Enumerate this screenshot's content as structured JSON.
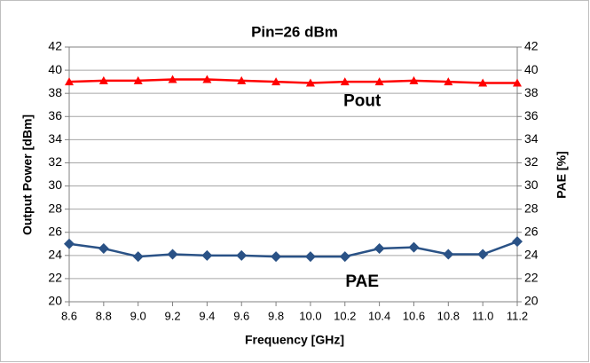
{
  "chart_data": {
    "type": "line",
    "title": "Pin=26 dBm",
    "x_label": "Frequency [GHz]",
    "y_label": "Output Power [dBm]",
    "y2_label": "PAE [%]",
    "x": [
      8.6,
      8.8,
      9.0,
      9.2,
      9.4,
      9.6,
      9.8,
      10.0,
      10.2,
      10.4,
      10.6,
      10.8,
      11.0,
      11.2
    ],
    "xlim": [
      8.6,
      11.2
    ],
    "xticks": [
      8.6,
      8.8,
      {
        "value": 9.0,
        "label": "9.0"
      },
      9.2,
      9.4,
      9.6,
      9.8,
      {
        "value": 10.0,
        "label": "10.0"
      },
      10.2,
      10.4,
      10.6,
      10.8,
      {
        "value": 11.0,
        "label": "11.0"
      },
      11.2
    ],
    "ylim": [
      20,
      42
    ],
    "yticks": [
      20,
      22,
      24,
      26,
      28,
      30,
      32,
      34,
      36,
      38,
      40,
      42
    ],
    "y2lim": [
      20,
      42
    ],
    "y2ticks": [
      20,
      22,
      24,
      26,
      28,
      30,
      32,
      34,
      36,
      38,
      40,
      42
    ],
    "grid": true,
    "series": [
      {
        "name": "Pout",
        "color": "#ff0000",
        "marker": "triangle",
        "values": [
          39.0,
          39.1,
          39.1,
          39.2,
          39.2,
          39.1,
          39.0,
          38.9,
          39.0,
          39.0,
          39.1,
          39.0,
          38.9,
          38.9
        ]
      },
      {
        "name": "PAE",
        "color": "#2a5286",
        "marker": "diamond",
        "axis": "y2",
        "values": [
          25.0,
          24.6,
          23.9,
          24.1,
          24.0,
          24.0,
          23.9,
          23.9,
          23.9,
          24.6,
          24.7,
          24.1,
          24.1,
          25.2
        ]
      }
    ]
  }
}
